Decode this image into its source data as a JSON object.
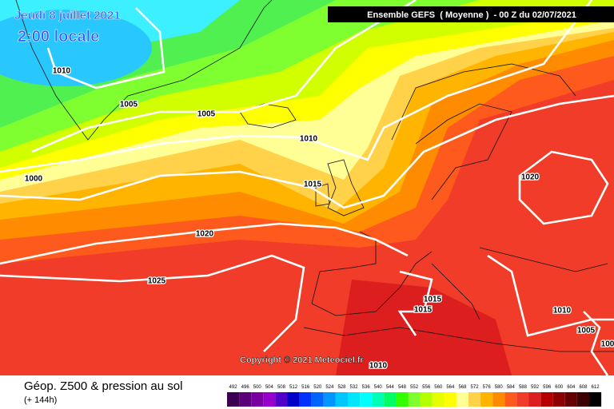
{
  "header": {
    "date": "Jeudi 8 juillet 2021",
    "time": "2:00 locale",
    "run": "Ensemble GEFS  ( Moyenne )  - 00 Z du 02/07/2021"
  },
  "copyright": "Copyright © 2021 Meteociel.fr",
  "isobars": {
    "labels": [
      "1010",
      "1005",
      "1005",
      "1010",
      "1000",
      "1015",
      "1020",
      "1020",
      "1025",
      "1015",
      "1015",
      "1010",
      "1010",
      "1005",
      "100"
    ]
  },
  "legend": {
    "title": "Géop. Z500 & pression au sol",
    "lead": "(+ 144h)",
    "ticks": [
      492,
      496,
      500,
      504,
      508,
      512,
      516,
      520,
      524,
      528,
      532,
      536,
      540,
      544,
      548,
      552,
      556,
      560,
      564,
      568,
      572,
      576,
      580,
      584,
      588,
      592,
      596,
      600,
      604,
      608,
      612
    ],
    "colors": [
      "#3c0050",
      "#5a0078",
      "#7800a0",
      "#9600c8",
      "#5000c8",
      "#0000c8",
      "#0032ff",
      "#0064ff",
      "#0096ff",
      "#00c8ff",
      "#00e6ff",
      "#00ffff",
      "#00ffb4",
      "#00ff64",
      "#32ff00",
      "#80ff30",
      "#b4ff00",
      "#e6ff00",
      "#ffff00",
      "#ffff96",
      "#ffd24a",
      "#ffb400",
      "#ff8c00",
      "#ff5a1e",
      "#f03c28",
      "#dc1e1e",
      "#b40000",
      "#8c0000",
      "#640000",
      "#3c0000",
      "#000000"
    ]
  }
}
